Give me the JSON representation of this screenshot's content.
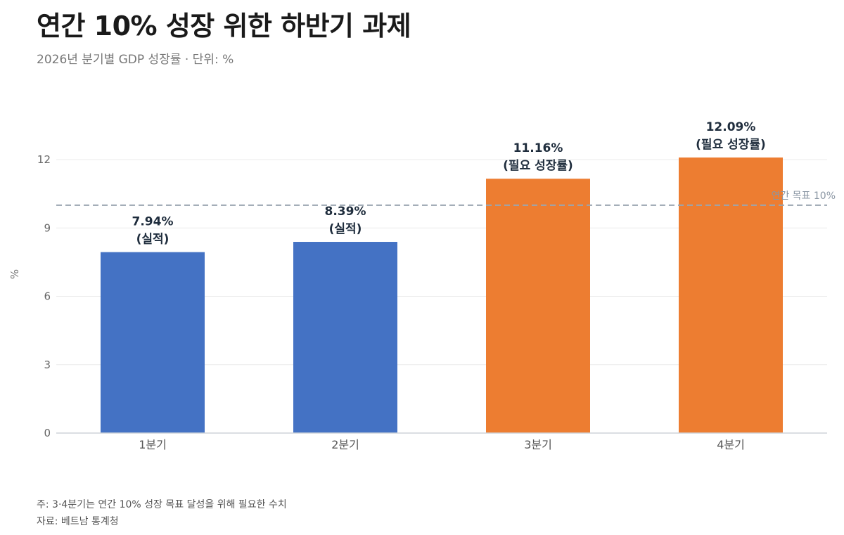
{
  "header": {
    "title": "연간 10% 성장 위한 하반기 과제",
    "subtitle": "2026년 분기별 GDP 성장률 · 단위: %"
  },
  "chart_data": {
    "type": "bar",
    "title": "연간 10% 성장 위한 하반기 과제",
    "subtitle": "2026년 분기별 GDP 성장률 · 단위: %",
    "xlabel": "",
    "ylabel": "%",
    "ylim": [
      0,
      13.5
    ],
    "yticks": [
      0,
      3,
      6,
      9,
      12
    ],
    "grid": true,
    "legend": "none",
    "categories": [
      "1분기",
      "2분기",
      "3분기",
      "4분기"
    ],
    "values": [
      7.94,
      8.39,
      11.16,
      12.09
    ],
    "value_labels": [
      "7.94%",
      "8.39%",
      "11.16%",
      "12.09%"
    ],
    "bar_notes": [
      "(실적)",
      "(실적)",
      "(필요 성장률)",
      "(필요 성장률)"
    ],
    "bar_colors": [
      "#4472C4",
      "#4472C4",
      "#ED7D31",
      "#ED7D31"
    ],
    "reference_line": {
      "value": 10,
      "label": "연간 목표 10%",
      "color": "#9AA5B1"
    }
  },
  "footer": {
    "note": "주: 3·4분기는 연간 10% 성장 목표 달성을 위해 필요한 수치",
    "source": "자료: 베트남 통계청"
  }
}
